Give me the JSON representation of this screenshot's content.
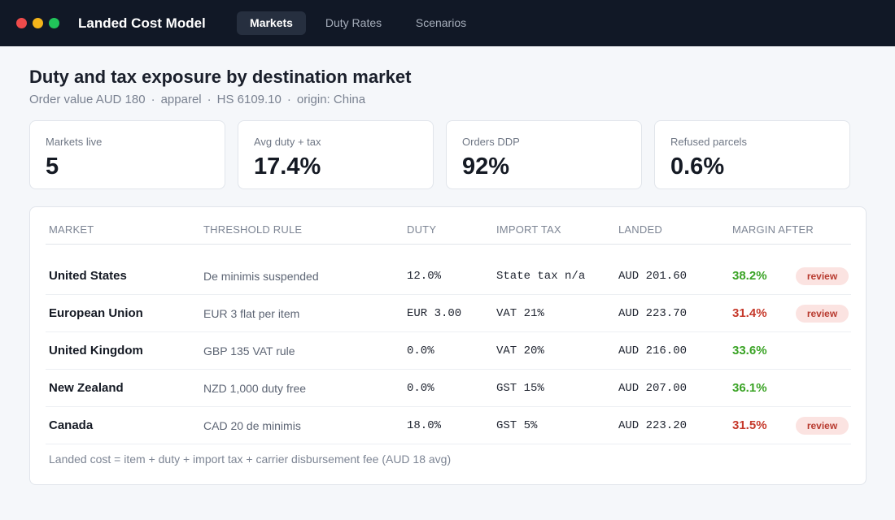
{
  "app": {
    "title": "Landed Cost Model"
  },
  "tabs": [
    {
      "label": "Markets",
      "active": true
    },
    {
      "label": "Duty Rates",
      "active": false
    },
    {
      "label": "Scenarios",
      "active": false
    }
  ],
  "header": {
    "title": "Duty and tax exposure by destination market",
    "meta": [
      "Order value AUD 180",
      "apparel",
      "HS 6109.10",
      "origin: China"
    ]
  },
  "kpis": [
    {
      "label": "Markets live",
      "value": "5"
    },
    {
      "label": "Avg duty + tax",
      "value": "17.4%"
    },
    {
      "label": "Orders DDP",
      "value": "92%"
    },
    {
      "label": "Refused parcels",
      "value": "0.6%"
    }
  ],
  "table": {
    "columns": [
      "MARKET",
      "THRESHOLD RULE",
      "DUTY",
      "IMPORT TAX",
      "LANDED",
      "MARGIN AFTER"
    ],
    "rows": [
      {
        "market": "United States",
        "rule": "De minimis suspended",
        "duty": "12.0%",
        "tax": "State tax n/a",
        "landed": "AUD 201.60",
        "margin": "38.2%",
        "status": "good",
        "badge": "review"
      },
      {
        "market": "European Union",
        "rule": "EUR 3 flat per item",
        "duty": "EUR 3.00",
        "tax": "VAT 21%",
        "landed": "AUD 223.70",
        "margin": "31.4%",
        "status": "bad",
        "badge": "review"
      },
      {
        "market": "United Kingdom",
        "rule": "GBP 135 VAT rule",
        "duty": "0.0%",
        "tax": "VAT 20%",
        "landed": "AUD 216.00",
        "margin": "33.6%",
        "status": "good",
        "badge": ""
      },
      {
        "market": "New Zealand",
        "rule": "NZD 1,000 duty free",
        "duty": "0.0%",
        "tax": "GST 15%",
        "landed": "AUD 207.00",
        "margin": "36.1%",
        "status": "good",
        "badge": ""
      },
      {
        "market": "Canada",
        "rule": "CAD 20 de minimis",
        "duty": "18.0%",
        "tax": "GST 5%",
        "landed": "AUD 223.20",
        "margin": "31.5%",
        "status": "bad",
        "badge": "review"
      }
    ],
    "footnote": "Landed cost = item + duty + import tax + carrier disbursement fee (AUD 18 avg)"
  },
  "colors": {
    "topbar": "#111826",
    "good": "#3aa325",
    "bad": "#c6392b",
    "badge_bg": "#fbe3e1"
  }
}
